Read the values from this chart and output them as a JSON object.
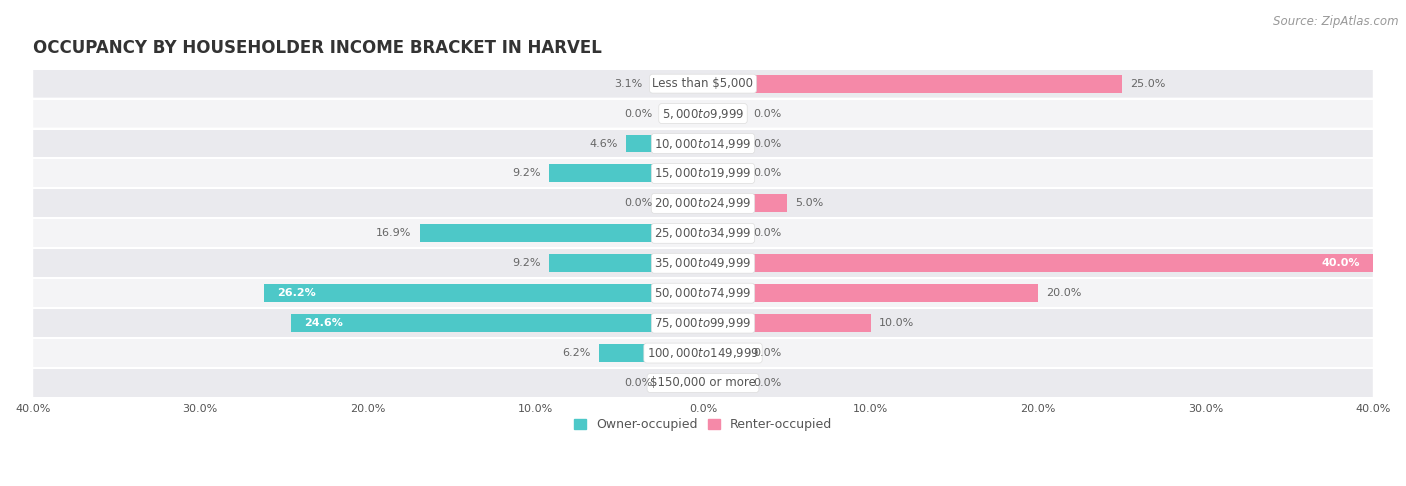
{
  "title": "OCCUPANCY BY HOUSEHOLDER INCOME BRACKET IN HARVEL",
  "source": "Source: ZipAtlas.com",
  "categories": [
    "Less than $5,000",
    "$5,000 to $9,999",
    "$10,000 to $14,999",
    "$15,000 to $19,999",
    "$20,000 to $24,999",
    "$25,000 to $34,999",
    "$35,000 to $49,999",
    "$50,000 to $74,999",
    "$75,000 to $99,999",
    "$100,000 to $149,999",
    "$150,000 or more"
  ],
  "owner_values": [
    3.1,
    0.0,
    4.6,
    9.2,
    0.0,
    16.9,
    9.2,
    26.2,
    24.6,
    6.2,
    0.0
  ],
  "renter_values": [
    25.0,
    0.0,
    0.0,
    0.0,
    5.0,
    0.0,
    40.0,
    20.0,
    10.0,
    0.0,
    0.0
  ],
  "owner_color": "#4dc8c8",
  "renter_color": "#f589a8",
  "owner_color_light": "#a8e4e4",
  "renter_color_light": "#fbc8d8",
  "owner_label": "Owner-occupied",
  "renter_label": "Renter-occupied",
  "xlim": 40.0,
  "bar_background_odd": "#eaeaee",
  "bar_background_even": "#f4f4f6",
  "title_fontsize": 12,
  "source_fontsize": 8.5,
  "label_fontsize": 8,
  "category_fontsize": 8.5,
  "bar_height": 0.6,
  "stub_size": 2.5,
  "tick_label_fontsize": 8
}
